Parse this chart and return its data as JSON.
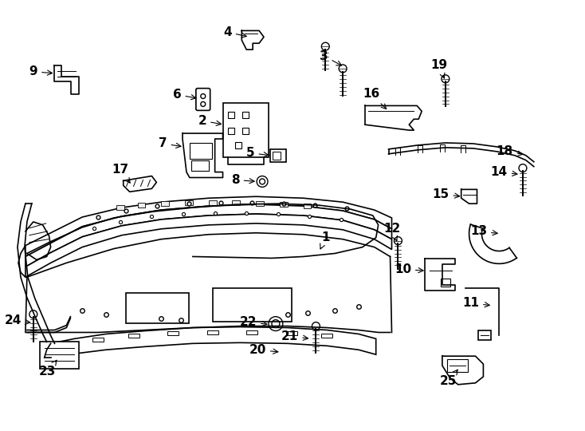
{
  "background_color": "#ffffff",
  "line_color": "#000000",
  "label_color": "#000000",
  "label_fontsize": 11,
  "lw": 1.2
}
